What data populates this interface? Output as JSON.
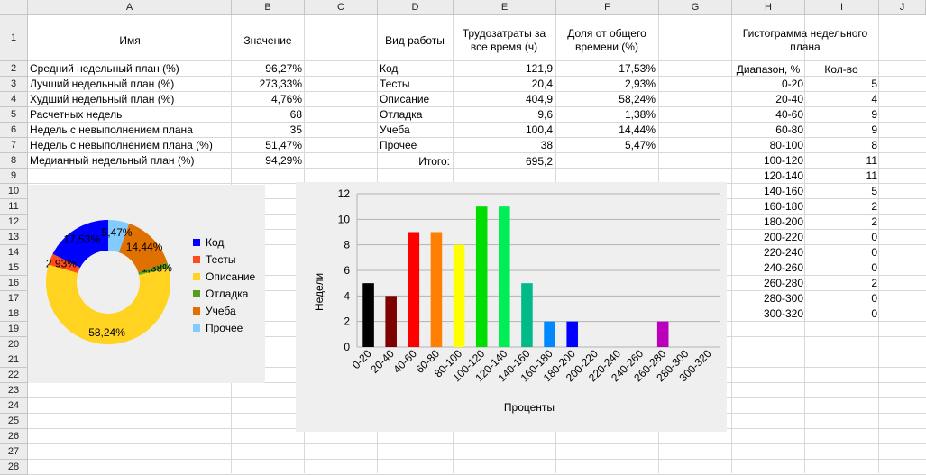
{
  "columns": [
    "A",
    "B",
    "C",
    "D",
    "E",
    "F",
    "G",
    "H",
    "I",
    "J"
  ],
  "rows": [
    "1",
    "2",
    "3",
    "4",
    "5",
    "6",
    "7",
    "8",
    "9",
    "10",
    "11",
    "12",
    "13",
    "14",
    "15",
    "16",
    "17",
    "18",
    "19",
    "20",
    "21",
    "22",
    "23",
    "24",
    "25",
    "26",
    "27",
    "28"
  ],
  "headers": {
    "a1": "Имя",
    "b1": "Значение",
    "d1": "Вид работы",
    "e1": "Трудозатраты за все время (ч)",
    "f1": "Доля от общего времени (%)",
    "h1": "Гистограмма недельного плана",
    "h2": "Диапазон, %",
    "i2": "Кол-во"
  },
  "stats": [
    {
      "name": "Средний недельный план (%)",
      "value": "96,27%"
    },
    {
      "name": "Лучший недельный план (%)",
      "value": "273,33%"
    },
    {
      "name": "Худший недельный план (%)",
      "value": "4,76%"
    },
    {
      "name": "Расчетных недель",
      "value": "68"
    },
    {
      "name": "Недель с невыполнением плана",
      "value": "35"
    },
    {
      "name": "Недель с невыполнением плана (%)",
      "value": "51,47%"
    },
    {
      "name": "Медианный недельный план (%)",
      "value": "94,29%"
    }
  ],
  "work": [
    {
      "type": "Код",
      "hours": "121,9",
      "share": "17,53%"
    },
    {
      "type": "Тесты",
      "hours": "20,4",
      "share": "2,93%"
    },
    {
      "type": "Описание",
      "hours": "404,9",
      "share": "58,24%"
    },
    {
      "type": "Отладка",
      "hours": "9,6",
      "share": "1,38%"
    },
    {
      "type": "Учеба",
      "hours": "100,4",
      "share": "14,44%"
    },
    {
      "type": "Прочее",
      "hours": "38",
      "share": "5,47%"
    }
  ],
  "total_label": "Итого:",
  "total_value": "695,2",
  "histogram": [
    {
      "range": "0-20",
      "count": "5"
    },
    {
      "range": "20-40",
      "count": "4"
    },
    {
      "range": "40-60",
      "count": "9"
    },
    {
      "range": "60-80",
      "count": "9"
    },
    {
      "range": "80-100",
      "count": "8"
    },
    {
      "range": "100-120",
      "count": "11"
    },
    {
      "range": "120-140",
      "count": "11"
    },
    {
      "range": "140-160",
      "count": "5"
    },
    {
      "range": "160-180",
      "count": "2"
    },
    {
      "range": "180-200",
      "count": "2"
    },
    {
      "range": "200-220",
      "count": "0"
    },
    {
      "range": "220-240",
      "count": "0"
    },
    {
      "range": "240-260",
      "count": "0"
    },
    {
      "range": "260-280",
      "count": "2"
    },
    {
      "range": "280-300",
      "count": "0"
    },
    {
      "range": "300-320",
      "count": "0"
    }
  ],
  "chart_data": [
    {
      "type": "pie",
      "categories": [
        "Код",
        "Тесты",
        "Описание",
        "Отладка",
        "Учеба",
        "Прочее"
      ],
      "values": [
        17.53,
        2.93,
        58.24,
        1.38,
        14.44,
        5.47
      ],
      "labels": [
        "17,53%",
        "2,93%",
        "58,24%",
        "1,38%",
        "14,44%",
        "5,47%"
      ],
      "colors": [
        "#0000ff",
        "#ff4c1c",
        "#ffd320",
        "#579d1c",
        "#e07000",
        "#83caff"
      ],
      "legend": "right",
      "donut": true
    },
    {
      "type": "bar",
      "categories": [
        "0-20",
        "20-40",
        "40-60",
        "60-80",
        "80-100",
        "100-120",
        "120-140",
        "140-160",
        "160-180",
        "180-200",
        "200-220",
        "220-240",
        "240-260",
        "260-280",
        "280-300",
        "300-320"
      ],
      "values": [
        5,
        4,
        9,
        9,
        8,
        11,
        11,
        5,
        2,
        2,
        0,
        0,
        0,
        2,
        0,
        0
      ],
      "colors": [
        "#000000",
        "#7f0000",
        "#ff0000",
        "#ff7f00",
        "#ffff00",
        "#00dd00",
        "#00ee55",
        "#00bb88",
        "#0088ff",
        "#0000ff",
        "#7700ff",
        "#aa00ff",
        "#cc00ff",
        "#bb00bb",
        "#ee00aa",
        "#ff0088"
      ],
      "xlabel": "Проценты",
      "ylabel": "Недели",
      "ylim": [
        0,
        12
      ],
      "yticks": [
        "0",
        "2",
        "4",
        "6",
        "8",
        "10",
        "12"
      ],
      "grid": true
    }
  ]
}
